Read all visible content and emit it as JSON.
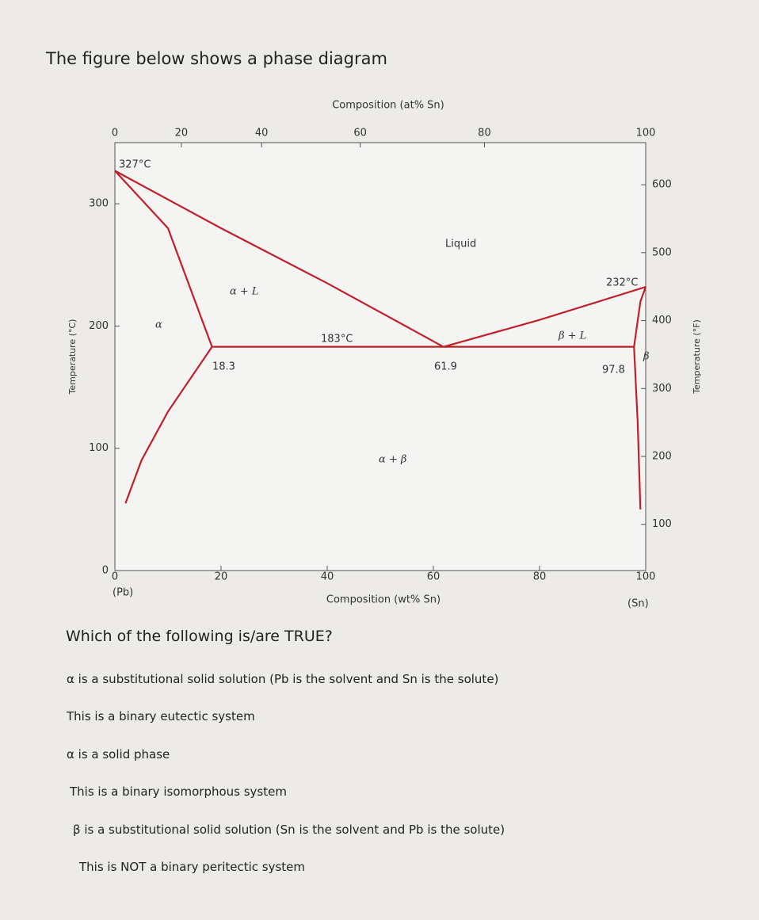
{
  "header": {
    "title": "The figure below shows a phase diagram"
  },
  "chart_data": {
    "type": "line",
    "x_label": "Composition (wt% Sn)",
    "x2_label": "Composition (at% Sn)",
    "y_label": "Temperature (°C)",
    "y2_label": "Temperature (°F)",
    "xlim": [
      0,
      100
    ],
    "xticks": [
      0,
      20,
      40,
      60,
      80,
      100
    ],
    "x2ticks": [
      0,
      20,
      40,
      60,
      80,
      100
    ],
    "ylim": [
      0,
      350
    ],
    "yticks": [
      0,
      100,
      200,
      300
    ],
    "y2lim": [
      32,
      662
    ],
    "y2ticks": [
      100,
      200,
      300,
      400,
      500,
      600
    ],
    "series": [
      {
        "color": "#c0202a",
        "x": [
          0,
          20,
          40,
          61.9
        ],
        "values": [
          327,
          280,
          235,
          183
        ]
      },
      {
        "color": "#c0202a",
        "x": [
          61.9,
          80,
          100
        ],
        "values": [
          183,
          205,
          232
        ]
      },
      {
        "color": "#c0202a",
        "x": [
          0,
          10,
          18.3
        ],
        "values": [
          327,
          280,
          183
        ]
      },
      {
        "color": "#c0202a",
        "x": [
          18.3,
          10,
          5,
          2
        ],
        "values": [
          183,
          130,
          90,
          55
        ]
      },
      {
        "color": "#c0202a",
        "x": [
          18.3,
          97.8
        ],
        "values": [
          183,
          183
        ]
      },
      {
        "color": "#c0202a",
        "x": [
          97.8,
          99,
          100
        ],
        "values": [
          183,
          220,
          232
        ]
      },
      {
        "color": "#c0202a",
        "x": [
          97.8,
          98.5,
          99
        ],
        "values": [
          183,
          120,
          50
        ]
      }
    ],
    "annotations": [
      "327°C",
      "232°C",
      "183°C",
      "18.3",
      "61.9",
      "97.8",
      "Liquid",
      "α + L",
      "β + L",
      "α + β",
      "α",
      "β",
      "(Pb)",
      "(Sn)"
    ]
  },
  "question": {
    "prompt": "Which of the following is/are TRUE?",
    "options": [
      "α is a substitutional solid solution (Pb is the solvent and Sn is the solute)",
      "This is a binary eutectic system",
      "α is a solid phase",
      "This is a binary isomorphous system",
      "β is a substitutional solid solution (Sn is the solvent and Pb is the solute)",
      "This is NOT a binary peritectic system"
    ]
  }
}
